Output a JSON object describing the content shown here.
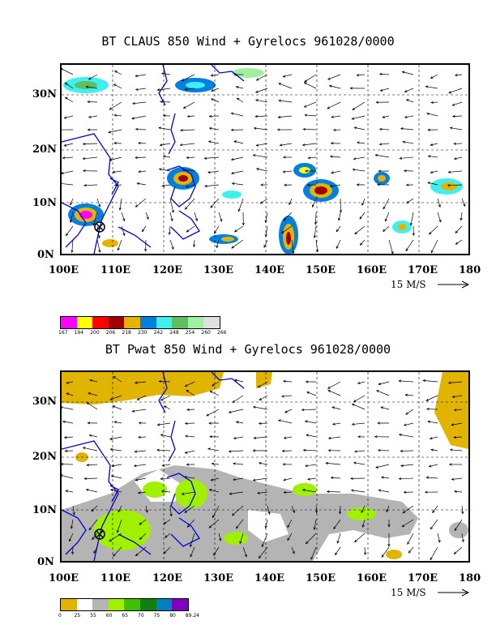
{
  "panel1": {
    "title": "BT CLAUS 850 Wind + Gyrelocs 961028/0000",
    "y_labels": [
      "30N",
      "20N",
      "10N",
      "0N"
    ],
    "x_labels": [
      "100E",
      "110E",
      "120E",
      "130E",
      "140E",
      "150E",
      "160E",
      "170E",
      "180"
    ],
    "scale_label": "15 M/S",
    "colorbar": {
      "colors": [
        "#ff00ff",
        "#ffff00",
        "#ff0000",
        "#a00000",
        "#e6b400",
        "#0080e0",
        "#40f0f0",
        "#60c060",
        "#a0f0a0",
        "#e0e0e0"
      ],
      "labels": [
        "167",
        "194",
        "200",
        "206",
        "218",
        "230",
        "242",
        "248",
        "254",
        "260",
        "266"
      ]
    }
  },
  "panel2": {
    "title": "BT Pwat 850 Wind + Gyrelocs 961028/0000",
    "y_labels": [
      "30N",
      "20N",
      "10N",
      "0N"
    ],
    "x_labels": [
      "100E",
      "110E",
      "120E",
      "130E",
      "140E",
      "150E",
      "160E",
      "170E",
      "180"
    ],
    "scale_label": "15 M/S",
    "colorbar": {
      "colors": [
        "#e0b400",
        "#ffffff",
        "#b4b4b4",
        "#a0f000",
        "#40c000",
        "#108010",
        "#0080c0",
        "#8000c0"
      ],
      "labels": [
        "0",
        "25",
        "55",
        "60",
        "65",
        "70",
        "75",
        "80",
        "89.24"
      ]
    }
  }
}
